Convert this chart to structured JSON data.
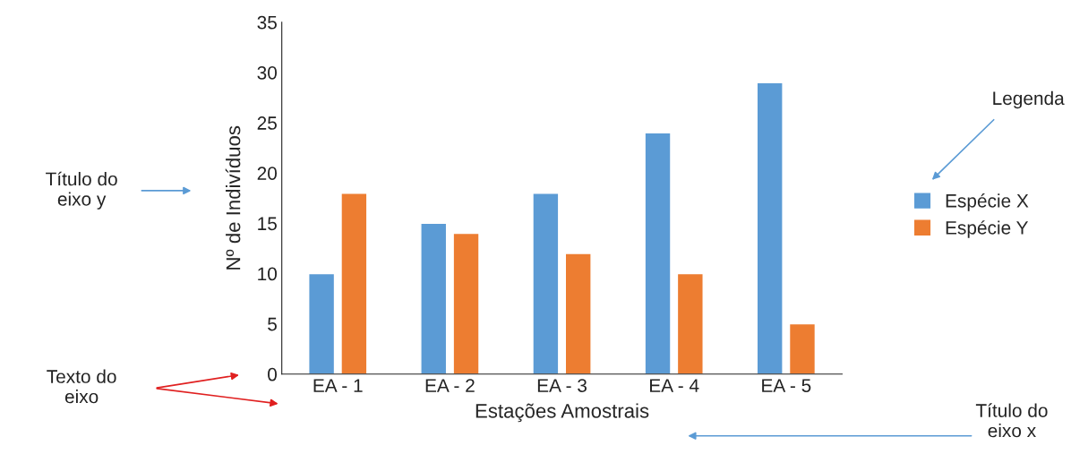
{
  "chart_data": {
    "type": "bar",
    "xlabel": "Estações Amostrais",
    "ylabel": "Nº de Indivíduos",
    "categories": [
      "EA - 1",
      "EA - 2",
      "EA - 3",
      "EA - 4",
      "EA - 5"
    ],
    "series": [
      {
        "name": "Espécie X",
        "color": "#5b9bd5",
        "values": [
          10,
          15,
          18,
          24,
          29
        ]
      },
      {
        "name": "Espécie Y",
        "color": "#ed7d31",
        "values": [
          18,
          14,
          12,
          10,
          5
        ]
      }
    ],
    "ylim": [
      0,
      35
    ],
    "yticks": [
      0,
      5,
      10,
      15,
      20,
      25,
      30,
      35
    ],
    "grid": false,
    "legend": "right",
    "annotations": [
      "Título do\neixo y",
      "Legenda",
      "Texto do\neixo",
      "Título do\neixo x"
    ]
  }
}
